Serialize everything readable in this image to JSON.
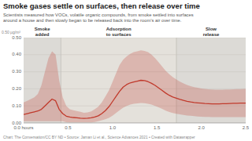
{
  "chart_data": {
    "type": "line",
    "title": "Smoke gases settle on surfaces, then release over time",
    "subtitle": "Scientists measured how VOCs, volatile organic compounds, from smoke settled into surfaces\naround a house and then slowly began to be released back into the room’s air over time.",
    "footer": "Chart: The Conversation/CC BY ND • Source: Jaman Li et al., Science Advances 2021 • Created with Datawrapper",
    "y_label": "0.50 µg/m³",
    "regions": [
      {
        "label": "Smoke\nadded",
        "start": 0.0,
        "end": 0.42,
        "color": "#dcdad6"
      },
      {
        "label": "Adsorption\nto surfaces",
        "start": 0.42,
        "end": 1.72,
        "color": "#e4e1db"
      },
      {
        "label": "Slow\nrelease",
        "start": 1.72,
        "end": 2.5,
        "color": "#dcdad6"
      }
    ],
    "x": [
      0.0,
      0.04,
      0.08,
      0.12,
      0.16,
      0.2,
      0.24,
      0.28,
      0.32,
      0.36,
      0.4,
      0.44,
      0.48,
      0.52,
      0.56,
      0.6,
      0.64,
      0.68,
      0.72,
      0.76,
      0.8,
      0.84,
      0.88,
      0.92,
      0.96,
      1.0,
      1.04,
      1.08,
      1.12,
      1.16,
      1.2,
      1.24,
      1.28,
      1.32,
      1.36,
      1.4,
      1.44,
      1.48,
      1.52,
      1.56,
      1.6,
      1.64,
      1.68,
      1.72,
      1.76,
      1.8,
      1.84,
      1.88,
      1.92,
      1.96,
      2.0,
      2.04,
      2.08,
      2.12,
      2.16,
      2.2,
      2.24,
      2.28,
      2.32,
      2.36,
      2.4,
      2.44,
      2.48,
      2.5
    ],
    "series": [
      {
        "color": "#c0392b",
        "values": [
          0.05,
          0.055,
          0.06,
          0.065,
          0.07,
          0.08,
          0.1,
          0.12,
          0.14,
          0.13,
          0.08,
          0.055,
          0.04,
          0.035,
          0.032,
          0.03,
          0.028,
          0.027,
          0.028,
          0.03,
          0.035,
          0.042,
          0.055,
          0.072,
          0.095,
          0.125,
          0.155,
          0.185,
          0.21,
          0.225,
          0.235,
          0.24,
          0.245,
          0.25,
          0.248,
          0.242,
          0.232,
          0.22,
          0.205,
          0.19,
          0.175,
          0.162,
          0.152,
          0.145,
          0.138,
          0.132,
          0.127,
          0.123,
          0.12,
          0.118,
          0.116,
          0.114,
          0.113,
          0.112,
          0.112,
          0.112,
          0.113,
          0.113,
          0.114,
          0.115,
          0.115,
          0.116,
          0.116,
          0.116
        ],
        "upper": [
          0.12,
          0.13,
          0.14,
          0.15,
          0.17,
          0.22,
          0.3,
          0.38,
          0.42,
          0.4,
          0.25,
          0.15,
          0.1,
          0.08,
          0.075,
          0.07,
          0.065,
          0.06,
          0.062,
          0.068,
          0.08,
          0.095,
          0.12,
          0.155,
          0.19,
          0.24,
          0.29,
          0.34,
          0.37,
          0.39,
          0.405,
          0.415,
          0.42,
          0.425,
          0.422,
          0.415,
          0.4,
          0.38,
          0.355,
          0.33,
          0.305,
          0.285,
          0.268,
          0.255,
          0.242,
          0.232,
          0.223,
          0.216,
          0.21,
          0.206,
          0.202,
          0.199,
          0.197,
          0.196,
          0.195,
          0.195,
          0.195,
          0.196,
          0.196,
          0.197,
          0.198,
          0.198,
          0.199,
          0.199
        ],
        "lower": [
          0.01,
          0.01,
          0.01,
          0.01,
          0.01,
          0.01,
          0.01,
          0.01,
          0.01,
          0.01,
          0.01,
          0.01,
          0.005,
          0.004,
          0.003,
          0.003,
          0.003,
          0.003,
          0.003,
          0.004,
          0.006,
          0.01,
          0.016,
          0.022,
          0.03,
          0.042,
          0.058,
          0.075,
          0.09,
          0.1,
          0.108,
          0.112,
          0.115,
          0.117,
          0.116,
          0.112,
          0.108,
          0.1,
          0.092,
          0.082,
          0.072,
          0.064,
          0.058,
          0.054,
          0.05,
          0.047,
          0.044,
          0.042,
          0.04,
          0.038,
          0.037,
          0.036,
          0.035,
          0.034,
          0.034,
          0.034,
          0.034,
          0.034,
          0.034,
          0.034,
          0.034,
          0.034,
          0.034,
          0.034
        ]
      }
    ],
    "xlim": [
      0.0,
      2.5
    ],
    "ylim": [
      0.0,
      0.5
    ],
    "xticks": [
      {
        "value": 0.0,
        "label": "0.0 hours"
      },
      0.5,
      {
        "value": 1.0,
        "label": "1.0"
      },
      1.5,
      {
        "value": 2.0,
        "label": "2.0"
      },
      2.5
    ],
    "yticks": [
      {
        "value": 0.0,
        "label": "0.00"
      },
      {
        "value": 0.1,
        "label": "0.10"
      },
      {
        "value": 0.2,
        "label": "0.20"
      },
      {
        "value": 0.3,
        "label": "0.30"
      },
      {
        "value": 0.4,
        "label": "0.40"
      },
      {
        "value": 0.5,
        "label": "0.50"
      }
    ],
    "grid": true
  }
}
